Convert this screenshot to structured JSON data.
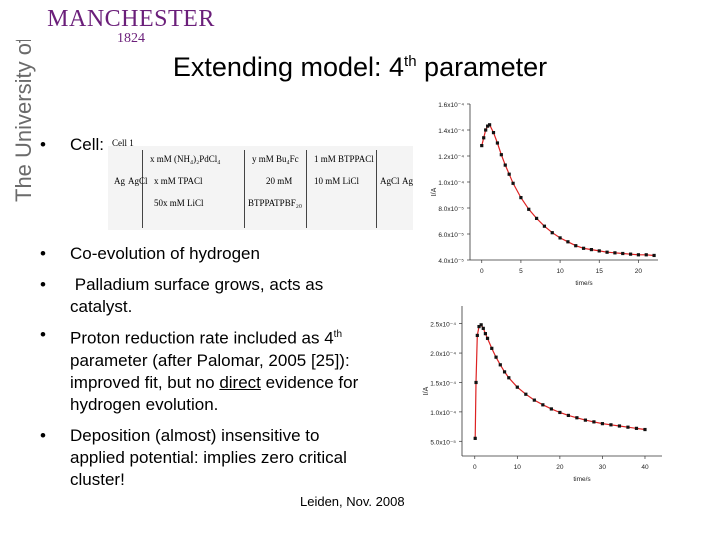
{
  "sidebar": {
    "university_text": "The University of Manchester"
  },
  "logo": {
    "name": "MANCHESTER",
    "year": "1824"
  },
  "title": {
    "main": "Extending model: 4",
    "sup": "th",
    "rest": " parameter"
  },
  "cell": {
    "label": "Cell:",
    "diagram_label": "Cell 1",
    "row1": [
      "x mM (NH₄)₂PdCl₄",
      "y mM Bu₄Fc",
      "1 mM BTPPACl"
    ],
    "row2_left": [
      "Ag",
      "AgCl"
    ],
    "row2": [
      "x mM TPACl",
      "20 mM",
      "10 mM LiCl"
    ],
    "row2_right": [
      "AgCl",
      "Ag"
    ],
    "row3": [
      "50x mM LiCl",
      "BTPPATPBF₂₀"
    ]
  },
  "bullets": [
    {
      "text": "Co-evolution of hydrogen"
    },
    {
      "text": " Palladium surface grows, acts as catalyst."
    },
    {
      "text_a": "Proton reduction rate included as 4",
      "sup": "th",
      "text_b": " parameter (after Palomar, 2005 [25]): improved fit, but no ",
      "underlined": "direct",
      "text_c": " evidence for hydrogen evolution."
    },
    {
      "text": "Deposition (almost) insensitive to applied potential: implies zero critical cluster!"
    }
  ],
  "footer": "Leiden, Nov. 2008",
  "chart_data": [
    {
      "type": "scatter",
      "y_ticks": [
        "1.6x10⁻⁴",
        "1.4x10⁻⁴",
        "1.2x10⁻⁴",
        "1.0x10⁻⁴",
        "8.0x10⁻⁵",
        "6.0x10⁻⁵",
        "4.0x10⁻⁵"
      ],
      "y_tick_values": [
        0.00016,
        0.00014,
        0.00012,
        0.0001,
        8e-05,
        6e-05,
        4e-05
      ],
      "x_ticks": [
        "0",
        "5",
        "10",
        "15",
        "20"
      ],
      "x_tick_values": [
        0,
        5,
        10,
        15,
        20
      ],
      "xlabel": "time/s",
      "ylabel": "I/A",
      "xlim": [
        -1.5,
        22.5
      ],
      "ylim": [
        4e-05,
        0.00016
      ],
      "x": [
        0.0,
        0.25,
        0.5,
        0.75,
        1.0,
        1.5,
        2,
        2.5,
        3,
        3.5,
        4,
        5,
        6,
        7,
        8,
        9,
        10,
        11,
        12,
        13,
        14,
        15,
        16,
        17,
        18,
        19,
        20,
        21,
        22
      ],
      "y": [
        0.000128,
        0.000134,
        0.00014,
        0.000143,
        0.000144,
        0.000138,
        0.00013,
        0.000121,
        0.000113,
        0.000106,
        9.9e-05,
        8.8e-05,
        7.9e-05,
        7.2e-05,
        6.6e-05,
        6.1e-05,
        5.7e-05,
        5.4e-05,
        5.1e-05,
        4.9e-05,
        4.8e-05,
        4.7e-05,
        4.6e-05,
        4.55e-05,
        4.5e-05,
        4.45e-05,
        4.4e-05,
        4.4e-05,
        4.35e-05
      ],
      "fit": true
    },
    {
      "type": "scatter",
      "y_ticks": [
        "2.5x10⁻⁴",
        "2.0x10⁻⁴",
        "1.5x10⁻⁴",
        "1.0x10⁻⁴",
        "5.0x10⁻⁵"
      ],
      "y_tick_values": [
        0.00025,
        0.0002,
        0.00015,
        0.0001,
        5e-05
      ],
      "x_ticks": [
        "0",
        "10",
        "20",
        "30",
        "40"
      ],
      "x_tick_values": [
        0,
        10,
        20,
        30,
        40
      ],
      "xlabel": "time/s",
      "ylabel": "I/A",
      "xlim": [
        -3,
        44
      ],
      "ylim": [
        2.5e-05,
        0.00028
      ],
      "x": [
        0.1,
        0.3,
        0.6,
        1.0,
        1.5,
        2.0,
        2.5,
        3,
        4,
        5,
        6,
        7,
        8,
        10,
        12,
        14,
        16,
        18,
        20,
        22,
        24,
        26,
        28,
        30,
        32,
        34,
        36,
        38,
        40
      ],
      "y": [
        5.5e-05,
        0.00015,
        0.00023,
        0.000245,
        0.000248,
        0.000242,
        0.000233,
        0.000225,
        0.000208,
        0.000193,
        0.00018,
        0.000168,
        0.000158,
        0.000142,
        0.00013,
        0.00012,
        0.000112,
        0.000105,
        9.9e-05,
        9.4e-05,
        9e-05,
        8.6e-05,
        8.3e-05,
        8e-05,
        7.8e-05,
        7.6e-05,
        7.4e-05,
        7.2e-05,
        7e-05
      ],
      "fit": true
    }
  ]
}
